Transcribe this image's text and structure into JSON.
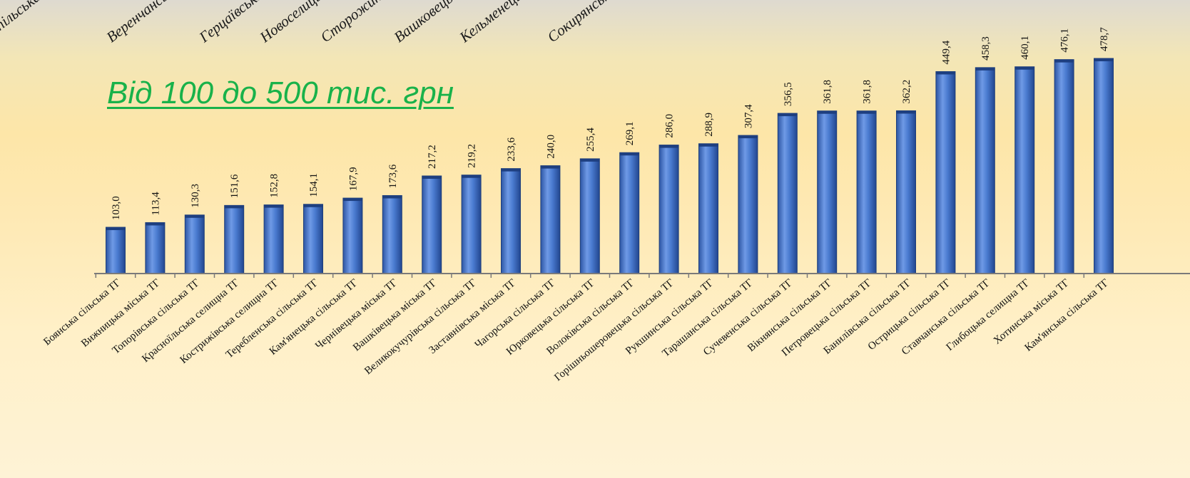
{
  "top_labels": [
    "Ямпільська",
    "Веренчанська",
    "Герцаївська",
    "Новоселицька",
    "Сторожинецька",
    "Вашковецька",
    "Кельменецька",
    "Сокирянська"
  ],
  "chart_data": {
    "type": "bar",
    "title": "Від 100 до 500 тис. грн",
    "categories": [
      "Боянська сільська ТГ",
      "Вижницька міська ТГ",
      "Топорівська сільська ТГ",
      "Красноїльська селищна ТГ",
      "Кострижівська селищна ТГ",
      "Теребленська сільська ТГ",
      "Кам'янецька сільська ТГ",
      "Чернівецька міська ТГ",
      "Вашківецька міська ТГ",
      "Великокучурівська сільська ТГ",
      "Заставнівська міська ТГ",
      "Чагорська сільська ТГ",
      "Юрковецька сільська ТГ",
      "Волоківська сільська ТГ",
      "Горішньошеровецька сільська ТГ",
      "Рукшинська сільська ТГ",
      "Тарашанська сільська ТГ",
      "Сучевенська сільська ТГ",
      "Вікнянська сільська ТГ",
      "Петровецька сільська ТГ",
      "Банилівська сільська ТГ",
      "Острицька сільська ТГ",
      "Ставчанська сільська ТГ",
      "Глибоцька селищна ТГ",
      "Хотинська міська ТГ",
      "Кам'янська сільська ТГ"
    ],
    "values": [
      103.0,
      113.4,
      130.3,
      151.6,
      152.8,
      154.1,
      167.9,
      173.6,
      217.2,
      219.2,
      233.6,
      240.0,
      255.4,
      269.1,
      286.0,
      288.9,
      307.4,
      356.5,
      361.8,
      361.8,
      362.2,
      449.4,
      458.3,
      460.1,
      476.1,
      478.7
    ],
    "value_labels": [
      "103,0",
      "113,4",
      "130,3",
      "151,6",
      "152,8",
      "154,1",
      "167,9",
      "173,6",
      "217,2",
      "219,2",
      "233,6",
      "240,0",
      "255,4",
      "269,1",
      "286,0",
      "288,9",
      "307,4",
      "356,5",
      "361,8",
      "361,8",
      "362,2",
      "449,4",
      "458,3",
      "460,1",
      "476,1",
      "478,7"
    ],
    "ylim": [
      0,
      500
    ],
    "bar_color": "#4b7ed1",
    "bar_edge_color": "#1f3f7a",
    "title_color": "#19b24a",
    "grid": false,
    "legend": "none"
  }
}
